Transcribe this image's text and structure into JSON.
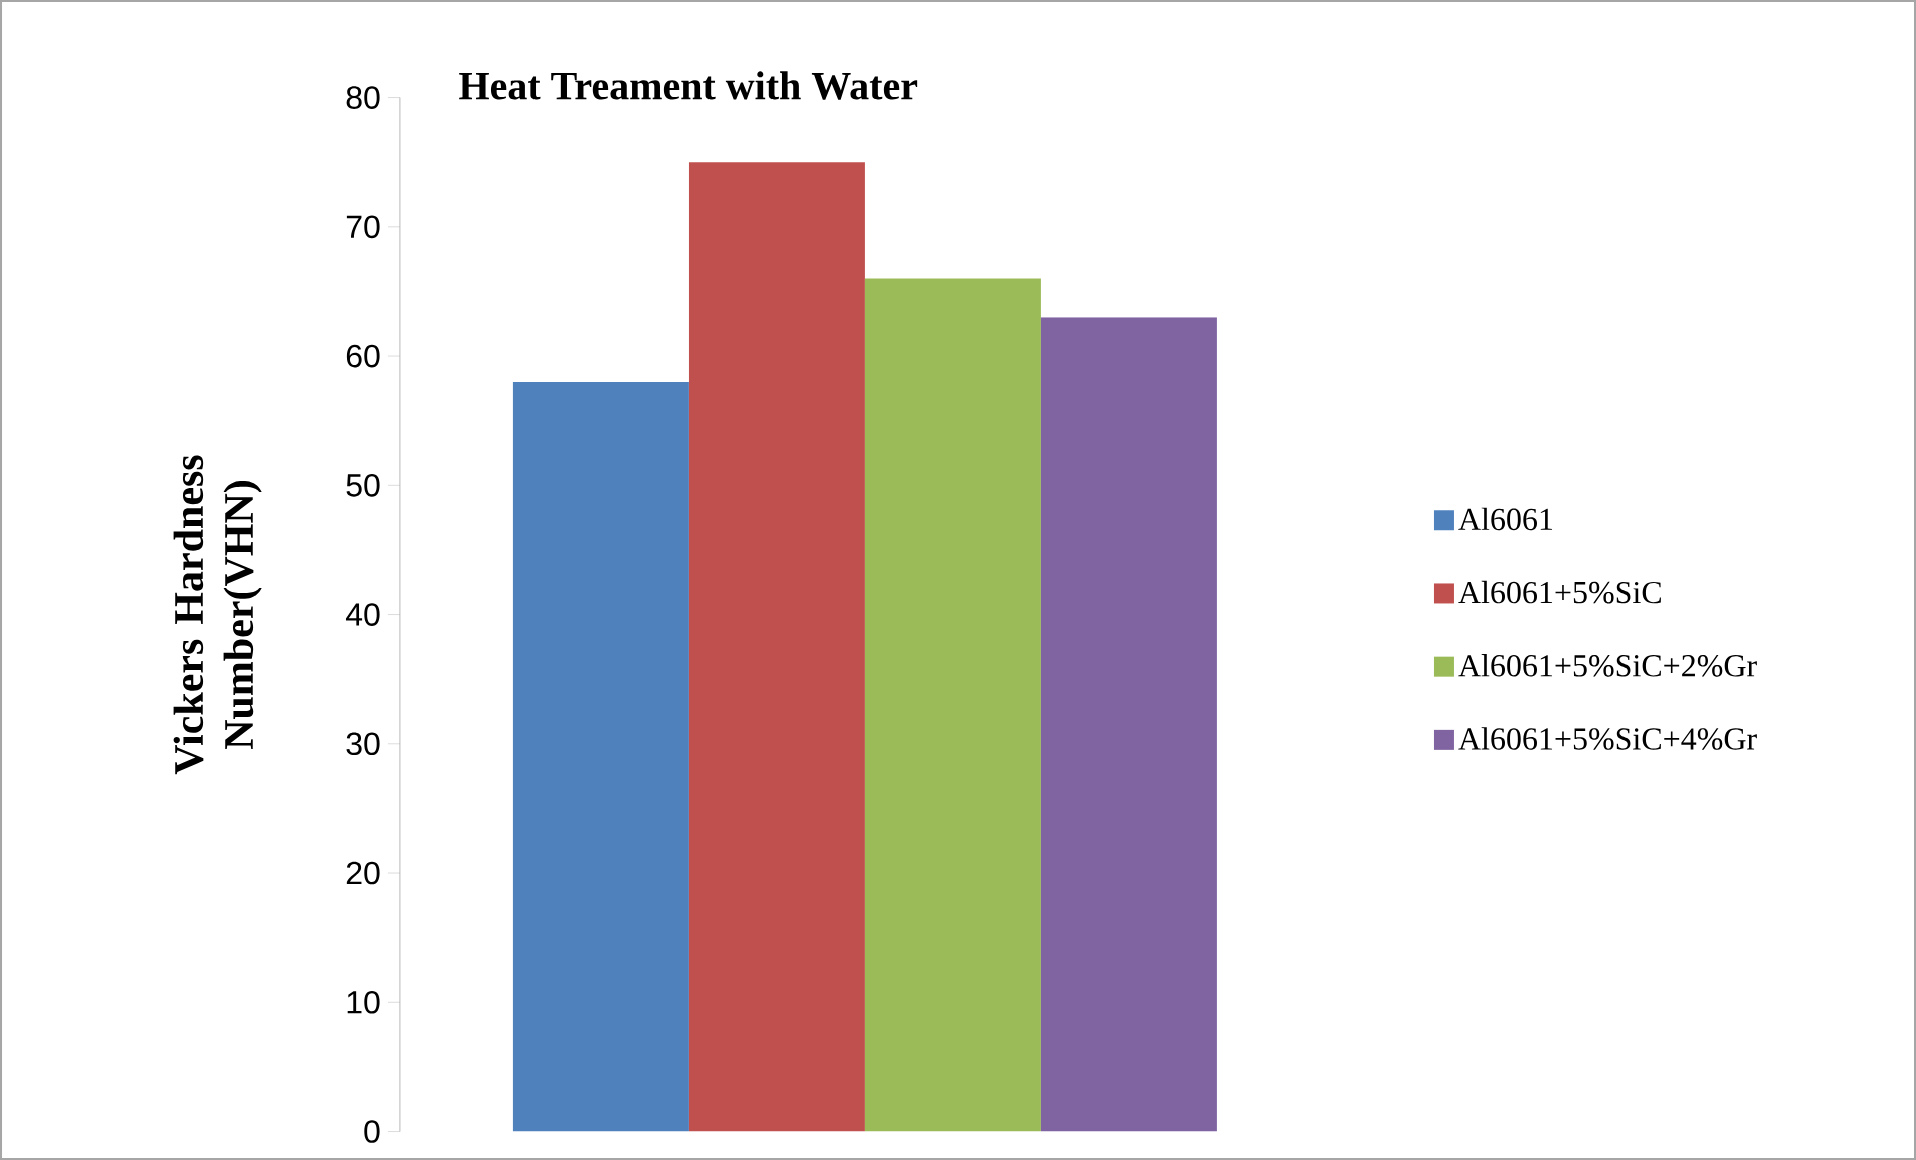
{
  "chart_data": {
    "type": "bar",
    "title": "Heat Treament with Water",
    "ylabel": "Vickers Hardness Number(VHN)",
    "categories": [
      null
    ],
    "series": [
      {
        "name": "Al6061",
        "color": "#4f81bd",
        "values": [
          58
        ]
      },
      {
        "name": "Al6061+5%SiC",
        "color": "#c0504d",
        "values": [
          75
        ]
      },
      {
        "name": "Al6061+5%SiC+2%Gr",
        "color": "#9bbb59",
        "values": [
          66
        ]
      },
      {
        "name": "Al6061+5%SiC+4%Gr",
        "color": "#8064a2",
        "values": [
          63
        ]
      }
    ],
    "ylim": [
      0,
      80
    ],
    "yticks": [
      0,
      10,
      20,
      30,
      40,
      50,
      60,
      70,
      80
    ],
    "legend": "right",
    "tick_labels": "y"
  }
}
